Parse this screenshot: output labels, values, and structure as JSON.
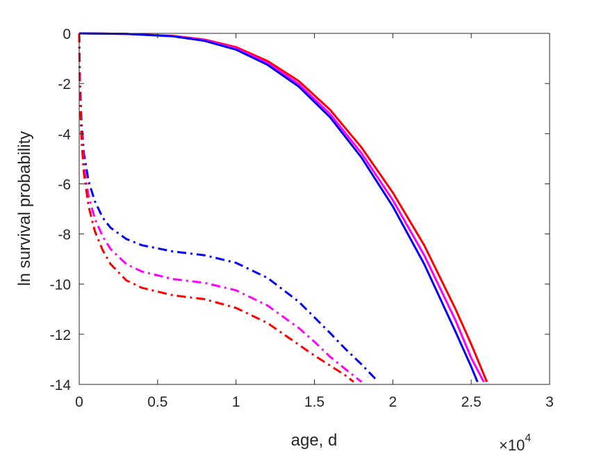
{
  "chart_data": {
    "type": "line",
    "xlabel": "age, d",
    "ylabel": "ln survival probability",
    "x_exponent_label": {
      "base": "×10",
      "exponent": "4"
    },
    "xlim": [
      0,
      30000
    ],
    "ylim": [
      -14,
      0
    ],
    "x_ticks": [
      0,
      5000,
      10000,
      15000,
      20000,
      25000,
      30000
    ],
    "x_tick_labels": [
      "0",
      "0.5",
      "1",
      "1.5",
      "2",
      "2.5",
      "3"
    ],
    "y_ticks": [
      0,
      -2,
      -4,
      -6,
      -8,
      -10,
      -12,
      -14
    ],
    "y_tick_labels": [
      "0",
      "-2",
      "-4",
      "-6",
      "-8",
      "-10",
      "-12",
      "-14"
    ],
    "grid": false,
    "series": [
      {
        "color": "#ff0000",
        "style": "solid",
        "x": [
          0,
          3000,
          6000,
          8000,
          10000,
          12000,
          14000,
          16000,
          18000,
          20000,
          22000,
          24000,
          25000,
          26000
        ],
        "y": [
          0,
          -0.02,
          -0.1,
          -0.25,
          -0.55,
          -1.1,
          -1.9,
          -3.05,
          -4.55,
          -6.35,
          -8.45,
          -11.0,
          -12.4,
          -13.9
        ]
      },
      {
        "color": "#ff00ff",
        "style": "solid",
        "x": [
          0,
          3000,
          6000,
          8000,
          10000,
          12000,
          14000,
          16000,
          18000,
          20000,
          22000,
          24000,
          25000,
          25800
        ],
        "y": [
          0,
          -0.02,
          -0.11,
          -0.27,
          -0.6,
          -1.18,
          -2.02,
          -3.22,
          -4.78,
          -6.65,
          -8.85,
          -11.45,
          -12.95,
          -13.9
        ]
      },
      {
        "color": "#0000ff",
        "style": "solid",
        "x": [
          0,
          3000,
          6000,
          8000,
          10000,
          12000,
          14000,
          16000,
          18000,
          20000,
          22000,
          24000,
          25000,
          25400
        ],
        "y": [
          0,
          -0.02,
          -0.12,
          -0.3,
          -0.65,
          -1.25,
          -2.12,
          -3.35,
          -4.95,
          -6.9,
          -9.2,
          -11.9,
          -13.3,
          -13.9
        ]
      },
      {
        "color": "#0000ff",
        "style": "dashdot",
        "x": [
          0,
          50,
          150,
          300,
          600,
          1000,
          1500,
          2000,
          3000,
          4000,
          6000,
          8000,
          10000,
          12000,
          14000,
          16000,
          17000,
          18000,
          19000
        ],
        "y": [
          0,
          -2.0,
          -3.6,
          -4.8,
          -5.9,
          -6.7,
          -7.35,
          -7.75,
          -8.2,
          -8.45,
          -8.7,
          -8.85,
          -9.15,
          -9.75,
          -10.7,
          -11.95,
          -12.6,
          -13.2,
          -13.85
        ]
      },
      {
        "color": "#ff00ff",
        "style": "dashdot",
        "x": [
          0,
          50,
          150,
          300,
          600,
          1000,
          1500,
          2000,
          3000,
          4000,
          6000,
          8000,
          10000,
          12000,
          14000,
          15000,
          16000,
          17000,
          18000
        ],
        "y": [
          0,
          -2.4,
          -4.0,
          -5.3,
          -6.5,
          -7.4,
          -8.1,
          -8.6,
          -9.2,
          -9.5,
          -9.8,
          -9.95,
          -10.25,
          -10.85,
          -11.75,
          -12.3,
          -12.9,
          -13.4,
          -13.9
        ]
      },
      {
        "color": "#ff0000",
        "style": "dashdot",
        "x": [
          0,
          50,
          150,
          300,
          600,
          1000,
          1500,
          2000,
          3000,
          4000,
          6000,
          8000,
          10000,
          12000,
          13500,
          15000,
          16000,
          17000,
          17500
        ],
        "y": [
          0,
          -2.6,
          -4.3,
          -5.6,
          -6.9,
          -7.9,
          -8.65,
          -9.2,
          -9.85,
          -10.15,
          -10.45,
          -10.6,
          -10.95,
          -11.55,
          -12.2,
          -12.85,
          -13.25,
          -13.65,
          -13.9
        ]
      }
    ]
  }
}
